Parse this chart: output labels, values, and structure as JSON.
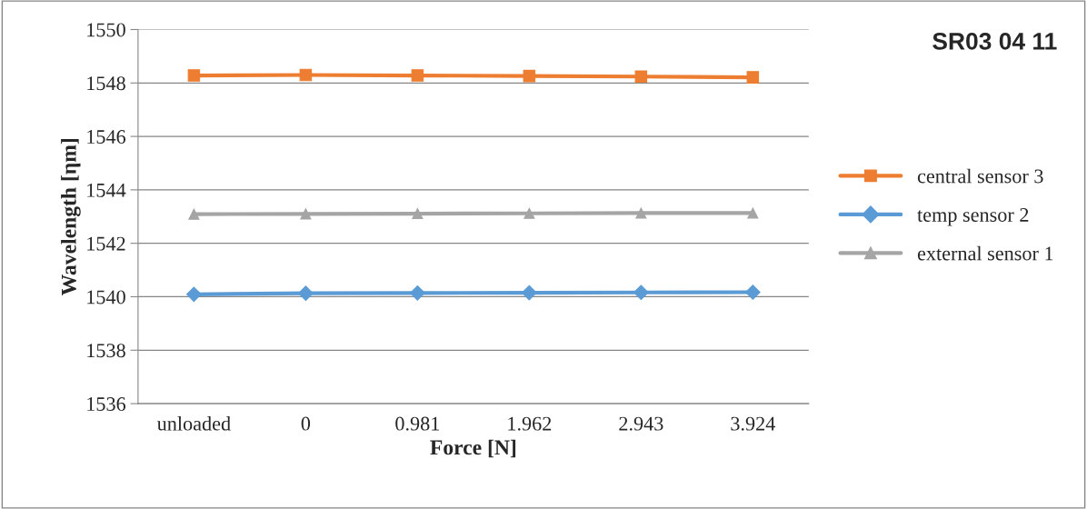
{
  "chart_data": {
    "type": "line",
    "title": "SR03 04 11",
    "xlabel": "Force [N]",
    "ylabel": "Wavelength [ηm]",
    "categories": [
      "unloaded",
      "0",
      "0.981",
      "1.962",
      "2.943",
      "3.924"
    ],
    "series": [
      {
        "name": "central sensor 3",
        "color": "#ed7d31",
        "marker": "square",
        "values": [
          1548.28,
          1548.3,
          1548.28,
          1548.26,
          1548.24,
          1548.21
        ]
      },
      {
        "name": "temp sensor 2",
        "color": "#5b9bd5",
        "marker": "diamond",
        "values": [
          1540.09,
          1540.13,
          1540.14,
          1540.15,
          1540.16,
          1540.17
        ]
      },
      {
        "name": "external sensor 1",
        "color": "#a5a5a5",
        "marker": "triangle",
        "values": [
          1543.09,
          1543.1,
          1543.11,
          1543.12,
          1543.13,
          1543.13
        ]
      }
    ],
    "ylim": [
      1536,
      1550
    ],
    "yticks": [
      1536,
      1538,
      1540,
      1542,
      1544,
      1546,
      1548,
      1550
    ],
    "grid": "y",
    "legend": "right",
    "line_style": "solid"
  }
}
